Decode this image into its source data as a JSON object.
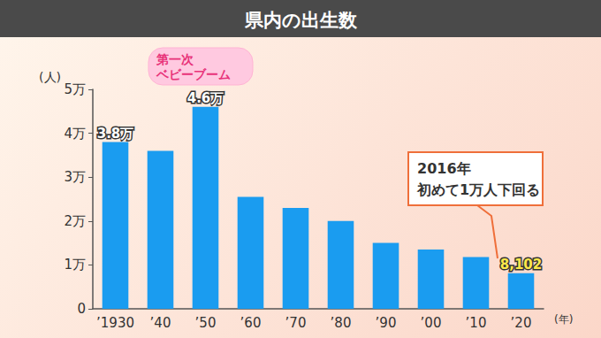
{
  "chart_data": {
    "type": "bar",
    "title": "県内の出生数",
    "x_label": "(年)",
    "y_label": "(人)",
    "categories": [
      "’1930",
      "’40",
      "’50",
      "’60",
      "’70",
      "’80",
      "’90",
      "’00",
      "’10",
      "’20"
    ],
    "values": [
      38000,
      36000,
      46000,
      25500,
      23000,
      20000,
      15000,
      13500,
      11800,
      8102
    ],
    "value_labels": [
      "3.8万",
      null,
      "4.6万",
      null,
      null,
      null,
      null,
      null,
      null,
      "8,102"
    ],
    "data_labels": true,
    "color": "#1a9cf0",
    "ylim": [
      0,
      50000
    ],
    "yticks": [
      0,
      {
        "value": 10000,
        "label": "1万"
      },
      {
        "value": 20000,
        "label": "2万"
      },
      {
        "value": 30000,
        "label": "3万"
      },
      {
        "value": 40000,
        "label": "4万"
      },
      {
        "value": 50000,
        "label": "5万"
      }
    ],
    "grid": false,
    "annotations": [
      {
        "text": "第一次\nベビーブーム"
      },
      {
        "text": "2016年\n初めて1万人下回る"
      }
    ]
  }
}
